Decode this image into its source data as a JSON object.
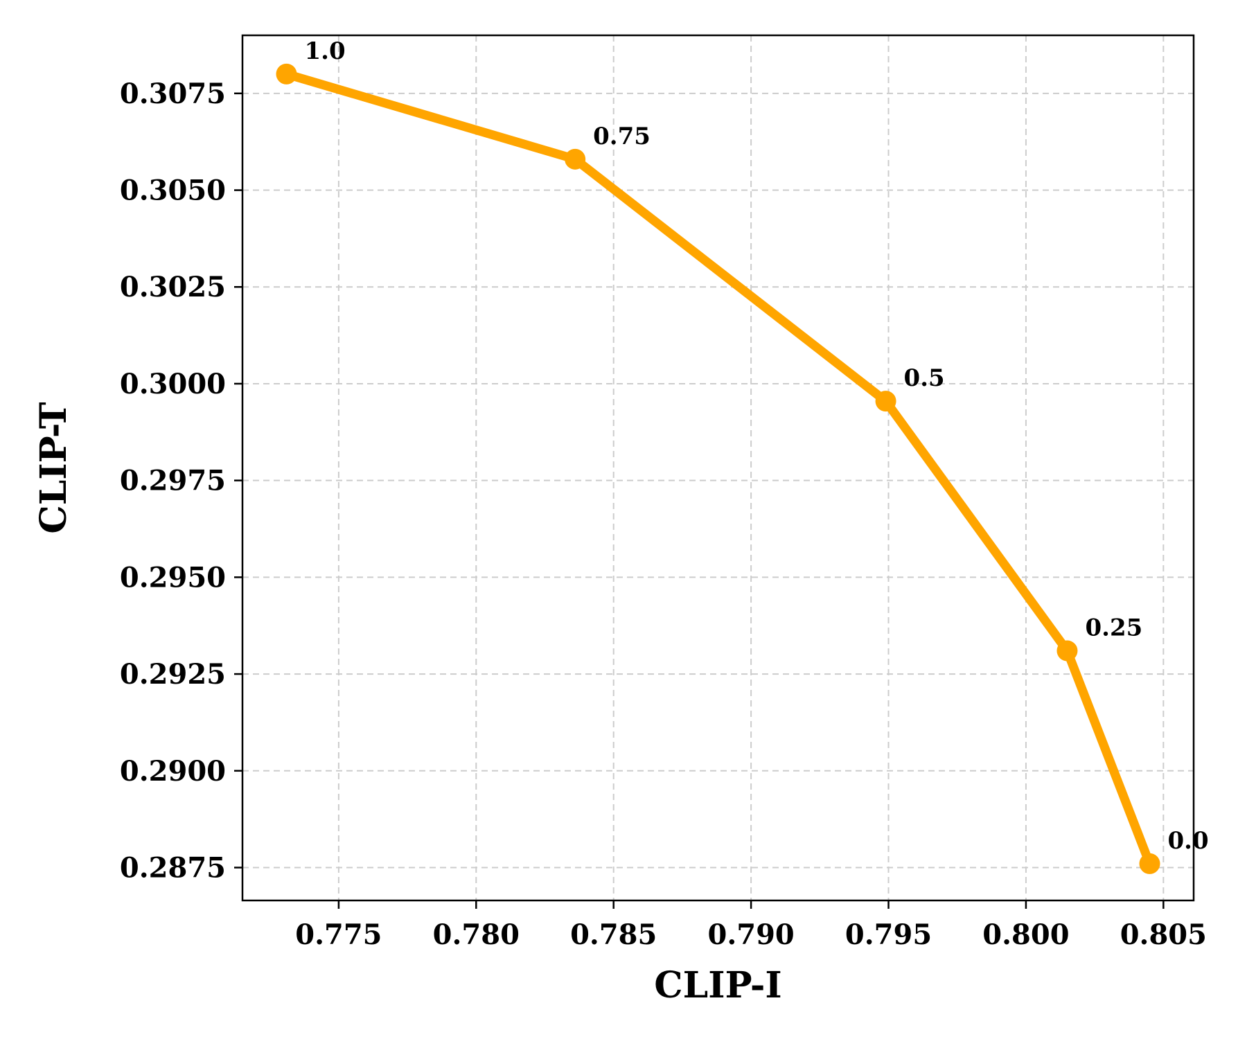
{
  "chart_data": {
    "type": "line",
    "xlabel": "CLIP-I",
    "ylabel": "CLIP-T",
    "xlim": [
      0.7715,
      0.8061
    ],
    "ylim": [
      0.28665,
      0.309
    ],
    "xticks": [
      0.775,
      0.78,
      0.785,
      0.79,
      0.795,
      0.8,
      0.805
    ],
    "xtick_labels": [
      "0.775",
      "0.780",
      "0.785",
      "0.790",
      "0.795",
      "0.800",
      "0.805"
    ],
    "yticks": [
      0.2875,
      0.29,
      0.2925,
      0.295,
      0.2975,
      0.3,
      0.3025,
      0.305,
      0.3075
    ],
    "ytick_labels": [
      "0.2875",
      "0.2900",
      "0.2925",
      "0.2950",
      "0.2975",
      "0.3000",
      "0.3025",
      "0.3050",
      "0.3075"
    ],
    "grid": true,
    "color": "#FFA500",
    "points": [
      {
        "x": 0.7731,
        "y": 0.308,
        "label": "1.0"
      },
      {
        "x": 0.7836,
        "y": 0.3058,
        "label": "0.75"
      },
      {
        "x": 0.7949,
        "y": 0.29955,
        "label": "0.5"
      },
      {
        "x": 0.8015,
        "y": 0.2931,
        "label": "0.25"
      },
      {
        "x": 0.8045,
        "y": 0.2876,
        "label": "0.0"
      }
    ]
  }
}
